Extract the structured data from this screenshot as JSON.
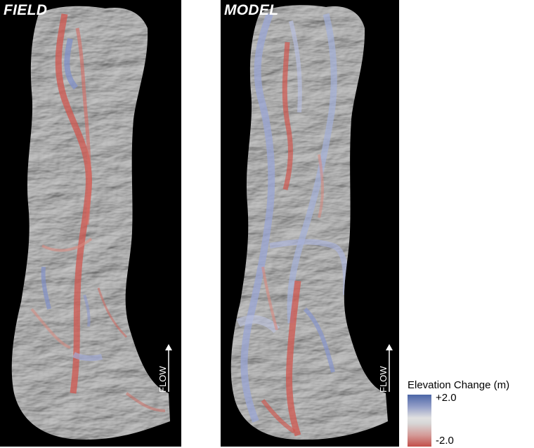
{
  "panels": {
    "field": {
      "label": "FIELD",
      "flow_label": "FLOW"
    },
    "model": {
      "label": "MODEL",
      "flow_label": "FLOW"
    }
  },
  "legend": {
    "title": "Elevation Change (m)",
    "max_label": "+2.0",
    "min_label": "-2.0",
    "colors": {
      "high": "#4c66a6",
      "mid": "#e0e0e0",
      "low": "#c24f4a"
    }
  },
  "colors": {
    "background": "#000000",
    "terrain": "#5e5e5e",
    "erosion": "#d0574f",
    "deposition": "#8090c8"
  }
}
